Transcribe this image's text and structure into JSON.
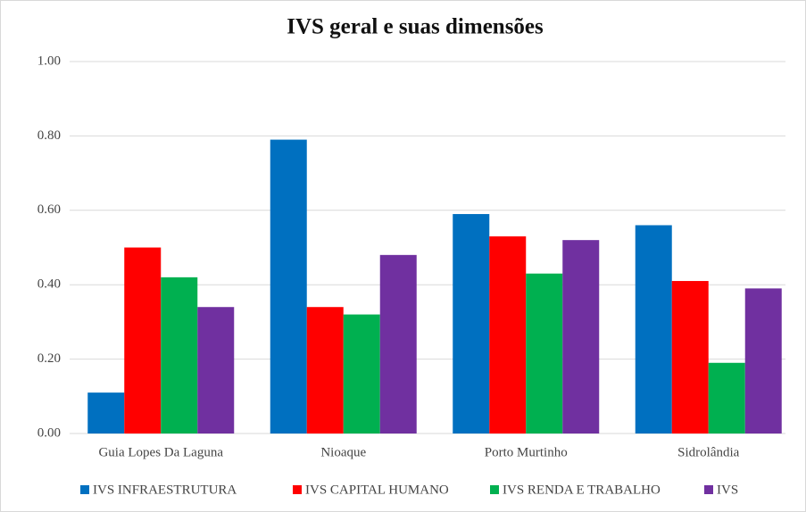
{
  "chart_data": {
    "type": "bar",
    "title": "IVS geral e suas dimensões",
    "categories": [
      "Guia Lopes Da Laguna",
      "Nioaque",
      "Porto Murtinho",
      "Sidrolândia"
    ],
    "series": [
      {
        "name": "IVS INFRAESTRUTURA",
        "color": "#0070c0",
        "values": [
          0.11,
          0.79,
          0.59,
          0.56
        ]
      },
      {
        "name": "IVS CAPITAL HUMANO",
        "color": "#ff0000",
        "values": [
          0.5,
          0.34,
          0.53,
          0.41
        ]
      },
      {
        "name": "IVS RENDA E TRABALHO",
        "color": "#00b050",
        "values": [
          0.42,
          0.32,
          0.43,
          0.19
        ]
      },
      {
        "name": "IVS",
        "color": "#7030a0",
        "values": [
          0.34,
          0.48,
          0.52,
          0.39
        ]
      }
    ],
    "ylim": [
      0,
      1
    ],
    "yticks": [
      {
        "value": 0,
        "label": "0.00"
      },
      {
        "value": 0.2,
        "label": "0.20"
      },
      {
        "value": 0.4,
        "label": "0.40"
      },
      {
        "value": 0.6,
        "label": "0.60"
      },
      {
        "value": 0.8,
        "label": "0.80"
      },
      {
        "value": 1,
        "label": "1.00"
      }
    ],
    "grid": true,
    "legend": "bottom"
  }
}
